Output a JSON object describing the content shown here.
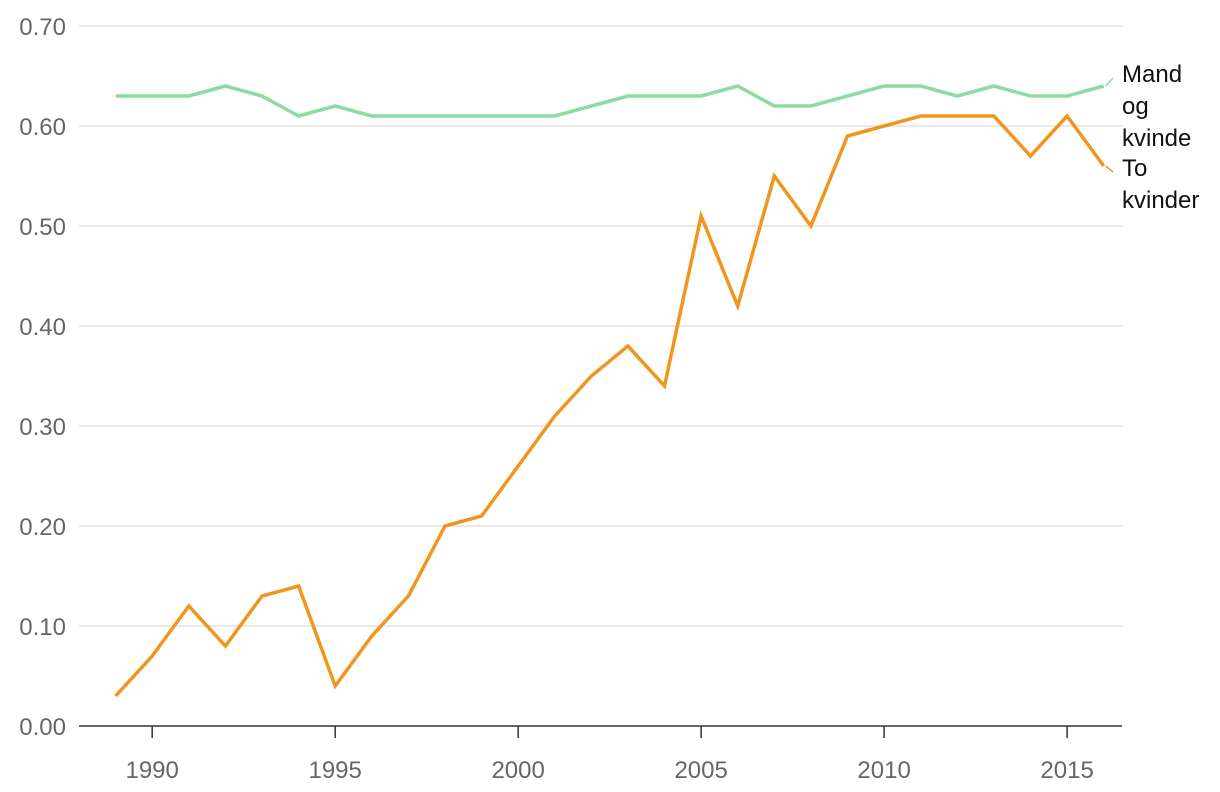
{
  "chart_data": {
    "type": "line",
    "title": "",
    "xlabel": "",
    "ylabel": "",
    "x": [
      1989,
      1990,
      1991,
      1992,
      1993,
      1994,
      1995,
      1996,
      1997,
      1998,
      1999,
      2000,
      2001,
      2002,
      2003,
      2004,
      2005,
      2006,
      2007,
      2008,
      2009,
      2010,
      2011,
      2012,
      2013,
      2014,
      2015,
      2016
    ],
    "xlim": [
      1988,
      2016.5
    ],
    "ylim": [
      0,
      0.7
    ],
    "x_ticks": [
      "1990",
      "1995",
      "2000",
      "2005",
      "2010",
      "2015"
    ],
    "x_tick_values": [
      1990,
      1995,
      2000,
      2005,
      2010,
      2015
    ],
    "y_ticks": [
      "0.00",
      "0.10",
      "0.20",
      "0.30",
      "0.40",
      "0.50",
      "0.60",
      "0.70"
    ],
    "y_tick_values": [
      0,
      0.1,
      0.2,
      0.3,
      0.4,
      0.5,
      0.6,
      0.7
    ],
    "grid": true,
    "series": [
      {
        "name": "Mand og kvinde",
        "label_lines": [
          "Mand",
          "og",
          "kvinde"
        ],
        "color": "#8ddc9f",
        "values": [
          0.63,
          0.63,
          0.63,
          0.64,
          0.63,
          0.61,
          0.62,
          0.61,
          0.61,
          0.61,
          0.61,
          0.61,
          0.61,
          0.62,
          0.63,
          0.63,
          0.63,
          0.64,
          0.62,
          0.62,
          0.63,
          0.64,
          0.64,
          0.63,
          0.64,
          0.63,
          0.63,
          0.64
        ]
      },
      {
        "name": "To kvinder",
        "label_lines": [
          "To",
          "kvinder"
        ],
        "color": "#f0961e",
        "values": [
          0.03,
          0.07,
          0.12,
          0.08,
          0.13,
          0.14,
          0.04,
          0.09,
          0.13,
          0.2,
          0.21,
          0.26,
          0.31,
          0.35,
          0.38,
          0.34,
          0.51,
          0.42,
          0.55,
          0.5,
          0.59,
          0.6,
          0.61,
          0.61,
          0.61,
          0.57,
          0.61,
          0.56
        ]
      }
    ]
  }
}
